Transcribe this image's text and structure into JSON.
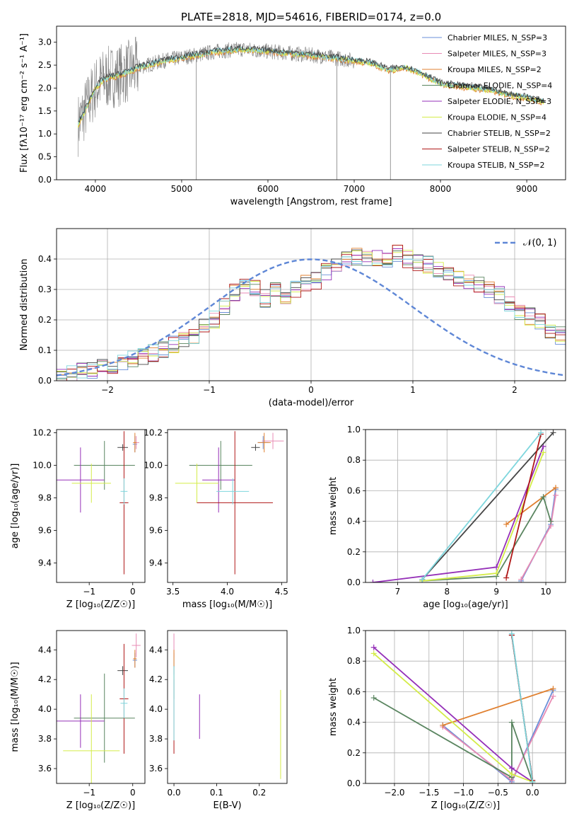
{
  "figure": {
    "title": "PLATE=2818, MJD=54616, FIBERID=0174, z=0.0"
  },
  "series_colors": {
    "chabrier_miles": "#6a8fd8",
    "salpeter_miles": "#e88bb4",
    "kroupa_miles": "#e08030",
    "chabrier_elodie": "#5a8560",
    "salpeter_elodie": "#9530b8",
    "kroupa_elodie": "#d4ec48",
    "chabrier_stelib": "#454545",
    "salpeter_stelib": "#b01818",
    "kroupa_stelib": "#7ed6dd",
    "data": "#808080",
    "normal": "#5f87d6"
  },
  "chart_data": [
    {
      "id": "spectrum",
      "type": "line",
      "xlabel": "wavelength [Angstrom, rest frame]",
      "ylabel": "Flux [fλ10⁻¹⁷ erg cm⁻² s⁻¹ A⁻¹]",
      "xlim": [
        3550,
        9450
      ],
      "ylim": [
        0,
        3.35
      ],
      "xticks": [
        "4000",
        "5000",
        "6000",
        "7000",
        "8000",
        "9000"
      ],
      "yticks": [
        "0.0",
        "0.5",
        "1.0",
        "1.5",
        "2.0",
        "2.5",
        "3.0"
      ],
      "grid": false,
      "legend_position": "top-right",
      "legend": [
        "Chabrier MILES, N_SSP=3",
        "Salpeter MILES, N_SSP=3",
        "Kroupa MILES, N_SSP=2",
        "Chabrier ELODIE, N_SSP=4",
        "Salpeter ELODIE, N_SSP=3",
        "Kroupa ELODIE, N_SSP=4",
        "Chabrier STELIB, N_SSP=2",
        "Salpeter STELIB, N_SSP=2",
        "Kroupa STELIB, N_SSP=2"
      ],
      "continuum": {
        "x": [
          3800,
          3900,
          4000,
          4100,
          4300,
          4500,
          4800,
          5100,
          5400,
          5700,
          6000,
          6300,
          6600,
          6800,
          7000,
          7200,
          7400,
          7600,
          7800,
          8000,
          8200,
          8400,
          8600,
          8800,
          9000,
          9200
        ],
        "y": [
          1.2,
          1.6,
          2.0,
          2.2,
          2.3,
          2.45,
          2.6,
          2.7,
          2.8,
          2.85,
          2.8,
          2.75,
          2.7,
          2.65,
          2.6,
          2.55,
          2.4,
          2.45,
          2.3,
          2.1,
          2.05,
          2.0,
          1.95,
          1.85,
          1.8,
          1.7
        ]
      }
    },
    {
      "id": "residuals",
      "type": "histogram",
      "xlabel": "(data-model)/error",
      "ylabel": "Normed distribution",
      "xlim": [
        -2.5,
        2.5
      ],
      "ylim": [
        0,
        0.5
      ],
      "xticks": [
        "−2",
        "−1",
        "0",
        "1",
        "2"
      ],
      "yticks": [
        "0.0",
        "0.1",
        "0.2",
        "0.3",
        "0.4"
      ],
      "grid": true,
      "legend_position": "top-right",
      "legend": [
        "𝒩(0, 1)"
      ],
      "bin_edges_start": -2.5,
      "bin_width": 0.1,
      "base_hist": [
        0.015,
        0.02,
        0.03,
        0.035,
        0.04,
        0.05,
        0.06,
        0.07,
        0.08,
        0.09,
        0.1,
        0.12,
        0.13,
        0.15,
        0.18,
        0.2,
        0.24,
        0.29,
        0.31,
        0.3,
        0.27,
        0.3,
        0.28,
        0.3,
        0.32,
        0.33,
        0.36,
        0.38,
        0.4,
        0.41,
        0.4,
        0.4,
        0.39,
        0.42,
        0.4,
        0.39,
        0.38,
        0.37,
        0.36,
        0.34,
        0.33,
        0.32,
        0.3,
        0.28,
        0.25,
        0.23,
        0.21,
        0.19,
        0.17,
        0.15,
        0.14,
        0.12,
        0.1,
        0.09,
        0.08,
        0.07,
        0.06,
        0.055,
        0.05,
        0.045
      ]
    },
    {
      "id": "age_vs_z",
      "type": "errorbar",
      "xlabel": "Z [log₁₀(Z/Z☉)]",
      "ylabel": "age  [log₁₀(age/yr)]",
      "xlim": [
        -1.75,
        0.28
      ],
      "ylim": [
        9.28,
        10.22
      ],
      "xticks": [
        "−1",
        "0"
      ],
      "yticks": [
        "9.4",
        "9.6",
        "9.8",
        "10.0",
        "10.2"
      ],
      "points": [
        {
          "s": "chabrier_miles",
          "x": 0.05,
          "xe": 0.05,
          "y": 10.13,
          "ye": 0.05
        },
        {
          "s": "salpeter_miles",
          "x": 0.08,
          "xe": 0.07,
          "y": 10.14,
          "ye": 0.04
        },
        {
          "s": "kroupa_miles",
          "x": 0.05,
          "xe": 0.04,
          "y": 10.14,
          "ye": 0.06
        },
        {
          "s": "chabrier_elodie",
          "x": -0.65,
          "xe": 0.7,
          "y": 10.0,
          "ye": 0.15
        },
        {
          "s": "salpeter_elodie",
          "x": -1.2,
          "xe": 0.55,
          "y": 9.91,
          "ye": 0.2
        },
        {
          "s": "kroupa_elodie",
          "x": -0.95,
          "xe": 0.45,
          "y": 9.89,
          "ye": 0.12
        },
        {
          "s": "chabrier_stelib",
          "x": -0.23,
          "xe": 0.12,
          "y": 10.11,
          "ye": 0.02
        },
        {
          "s": "salpeter_stelib",
          "x": -0.2,
          "xe": 0.1,
          "y": 9.77,
          "ye": 0.44
        },
        {
          "s": "kroupa_stelib",
          "x": -0.2,
          "xe": 0.08,
          "y": 9.84,
          "ye": 0.08
        }
      ]
    },
    {
      "id": "age_vs_mass",
      "type": "errorbar",
      "xlabel": "mass [log₁₀(M/M☉)]",
      "ylabel": "",
      "xlim": [
        3.45,
        4.55
      ],
      "ylim": [
        9.28,
        10.22
      ],
      "xticks": [
        "3.5",
        "4.0",
        "4.5"
      ],
      "yticks": [
        "9.4",
        "9.6",
        "9.8",
        "10.0",
        "10.2"
      ],
      "points": [
        {
          "s": "chabrier_miles",
          "x": 4.33,
          "xe": 0.05,
          "y": 10.14,
          "ye": 0.04
        },
        {
          "s": "salpeter_miles",
          "x": 4.42,
          "xe": 0.1,
          "y": 10.15,
          "ye": 0.05
        },
        {
          "s": "kroupa_miles",
          "x": 4.34,
          "xe": 0.06,
          "y": 10.14,
          "ye": 0.06
        },
        {
          "s": "chabrier_elodie",
          "x": 3.94,
          "xe": 0.29,
          "y": 10.0,
          "ye": 0.15
        },
        {
          "s": "salpeter_elodie",
          "x": 3.92,
          "xe": 0.15,
          "y": 9.91,
          "ye": 0.2
        },
        {
          "s": "kroupa_elodie",
          "x": 3.72,
          "xe": 0.2,
          "y": 9.89,
          "ye": 0.12
        },
        {
          "s": "chabrier_stelib",
          "x": 4.26,
          "xe": 0.04,
          "y": 10.11,
          "ye": 0.02
        },
        {
          "s": "salpeter_stelib",
          "x": 4.07,
          "xe": 0.35,
          "y": 9.77,
          "ye": 0.44
        },
        {
          "s": "kroupa_stelib",
          "x": 4.05,
          "xe": 0.15,
          "y": 9.84,
          "ye": 0.08
        }
      ]
    },
    {
      "id": "mass_weight_vs_age",
      "type": "line",
      "xlabel": "age  [log₁₀(age/yr)]",
      "ylabel": "mass weight",
      "xlim": [
        6.35,
        10.4
      ],
      "ylim": [
        0,
        1
      ],
      "xticks": [
        "7",
        "8",
        "9",
        "10"
      ],
      "yticks": [
        "0.0",
        "0.2",
        "0.4",
        "0.6",
        "0.8",
        "1.0"
      ],
      "grid": true,
      "series": [
        {
          "s": "chabrier_miles",
          "x": [
            9.5,
            10.1,
            10.2
          ],
          "y": [
            0.01,
            0.38,
            0.61
          ]
        },
        {
          "s": "salpeter_miles",
          "x": [
            9.5,
            10.1,
            10.2
          ],
          "y": [
            0.02,
            0.37,
            0.57
          ]
        },
        {
          "s": "kroupa_miles",
          "x": [
            9.2,
            10.2
          ],
          "y": [
            0.38,
            0.62
          ]
        },
        {
          "s": "chabrier_elodie",
          "x": [
            7.5,
            9.0,
            9.95,
            10.1
          ],
          "y": [
            0.01,
            0.04,
            0.56,
            0.4
          ]
        },
        {
          "s": "salpeter_elodie",
          "x": [
            6.5,
            9.0,
            9.95
          ],
          "y": [
            0.0,
            0.1,
            0.89
          ]
        },
        {
          "s": "kroupa_elodie",
          "x": [
            7.5,
            9.0,
            9.95
          ],
          "y": [
            0.01,
            0.06,
            0.85
          ]
        },
        {
          "s": "chabrier_stelib",
          "x": [
            7.5,
            10.15
          ],
          "y": [
            0.02,
            0.98
          ]
        },
        {
          "s": "salpeter_stelib",
          "x": [
            9.2,
            9.9
          ],
          "y": [
            0.03,
            0.97
          ]
        },
        {
          "s": "kroupa_stelib",
          "x": [
            7.5,
            9.9
          ],
          "y": [
            0.02,
            0.98
          ]
        }
      ]
    },
    {
      "id": "mass_vs_z",
      "type": "errorbar",
      "xlabel": "Z [log₁₀(Z/Z☉)]",
      "ylabel": "mass [log₁₀(M/M☉)]",
      "xlim": [
        -1.75,
        0.28
      ],
      "ylim": [
        3.5,
        4.53
      ],
      "xticks": [
        "−1",
        "0"
      ],
      "yticks": [
        "3.6",
        "3.8",
        "4.0",
        "4.2",
        "4.4"
      ],
      "points": [
        {
          "s": "chabrier_miles",
          "x": 0.05,
          "xe": 0.05,
          "y": 4.33,
          "ye": 0.05
        },
        {
          "s": "salpeter_miles",
          "x": 0.08,
          "xe": 0.1,
          "y": 4.43,
          "ye": 0.08
        },
        {
          "s": "kroupa_miles",
          "x": 0.05,
          "xe": 0.04,
          "y": 4.34,
          "ye": 0.06
        },
        {
          "s": "chabrier_elodie",
          "x": -0.65,
          "xe": 0.7,
          "y": 3.94,
          "ye": 0.3
        },
        {
          "s": "salpeter_elodie",
          "x": -1.2,
          "xe": 0.55,
          "y": 3.92,
          "ye": 0.18
        },
        {
          "s": "kroupa_elodie",
          "x": -0.95,
          "xe": 0.65,
          "y": 3.72,
          "ye": 0.38
        },
        {
          "s": "chabrier_stelib",
          "x": -0.23,
          "xe": 0.12,
          "y": 4.26,
          "ye": 0.03
        },
        {
          "s": "salpeter_stelib",
          "x": -0.2,
          "xe": 0.1,
          "y": 4.07,
          "ye": 0.37
        },
        {
          "s": "kroupa_stelib",
          "x": -0.2,
          "xe": 0.08,
          "y": 4.04,
          "ye": 0.1
        }
      ]
    },
    {
      "id": "mass_vs_ebv",
      "type": "errorbar",
      "xlabel": "E(B-V)",
      "ylabel": "",
      "xlim": [
        -0.015,
        0.265
      ],
      "ylim": [
        3.5,
        4.53
      ],
      "xticks": [
        "0.0",
        "0.1",
        "0.2"
      ],
      "yticks": [
        "3.6",
        "3.8",
        "4.0",
        "4.2",
        "4.4"
      ],
      "points": [
        {
          "s": "chabrier_miles",
          "x": 0.0,
          "xe": 0,
          "y": 4.33,
          "ye": 0.05
        },
        {
          "s": "salpeter_miles",
          "x": 0.0,
          "xe": 0,
          "y": 4.43,
          "ye": 0.08
        },
        {
          "s": "kroupa_miles",
          "x": 0.0,
          "xe": 0,
          "y": 4.3,
          "ye": 0.1
        },
        {
          "s": "chabrier_elodie",
          "x": 0.0,
          "xe": 0,
          "y": 4.15,
          "ye": 0.08
        },
        {
          "s": "salpeter_elodie",
          "x": 0.06,
          "xe": 0,
          "y": 3.95,
          "ye": 0.15
        },
        {
          "s": "kroupa_elodie",
          "x": 0.25,
          "xe": 0,
          "y": 3.83,
          "ye": 0.3
        },
        {
          "s": "chabrier_stelib",
          "x": 0.0,
          "xe": 0,
          "y": 4.26,
          "ye": 0.03
        },
        {
          "s": "salpeter_stelib",
          "x": 0.0,
          "xe": 0,
          "y": 3.95,
          "ye": 0.25
        },
        {
          "s": "kroupa_stelib",
          "x": 0.0,
          "xe": 0,
          "y": 4.04,
          "ye": 0.25
        }
      ]
    },
    {
      "id": "mass_weight_vs_z",
      "type": "line",
      "xlabel": "Z [log₁₀(Z/Z☉)]",
      "ylabel": "mass weight",
      "xlim": [
        -2.42,
        0.48
      ],
      "ylim": [
        0,
        1
      ],
      "xticks": [
        "−2.0",
        "−1.5",
        "−1.0",
        "−0.5",
        "0.0"
      ],
      "yticks": [
        "0.0",
        "0.2",
        "0.4",
        "0.6",
        "0.8",
        "1.0"
      ],
      "grid": true,
      "series": [
        {
          "s": "chabrier_miles",
          "x": [
            -1.3,
            -0.3,
            0.3
          ],
          "y": [
            0.38,
            0.01,
            0.61
          ]
        },
        {
          "s": "salpeter_miles",
          "x": [
            -1.3,
            -0.3,
            0.3
          ],
          "y": [
            0.37,
            0.02,
            0.57
          ]
        },
        {
          "s": "kroupa_miles",
          "x": [
            -1.3,
            0.3
          ],
          "y": [
            0.38,
            0.62
          ]
        },
        {
          "s": "chabrier_elodie",
          "x": [
            -2.3,
            -0.3,
            -0.3,
            0.0
          ],
          "y": [
            0.56,
            0.04,
            0.4,
            0.01
          ]
        },
        {
          "s": "salpeter_elodie",
          "x": [
            -2.3,
            -0.3,
            0.0
          ],
          "y": [
            0.89,
            0.1,
            0.01
          ]
        },
        {
          "s": "kroupa_elodie",
          "x": [
            -2.3,
            -0.3,
            0.0
          ],
          "y": [
            0.85,
            0.06,
            0.01
          ]
        },
        {
          "s": "chabrier_stelib",
          "x": [
            -0.3,
            0.0
          ],
          "y": [
            0.97,
            0.02
          ]
        },
        {
          "s": "salpeter_stelib",
          "x": [
            -0.3,
            0.0
          ],
          "y": [
            0.97,
            0.02
          ]
        },
        {
          "s": "kroupa_stelib",
          "x": [
            -0.3,
            0.0
          ],
          "y": [
            0.98,
            0.01
          ]
        }
      ]
    }
  ]
}
